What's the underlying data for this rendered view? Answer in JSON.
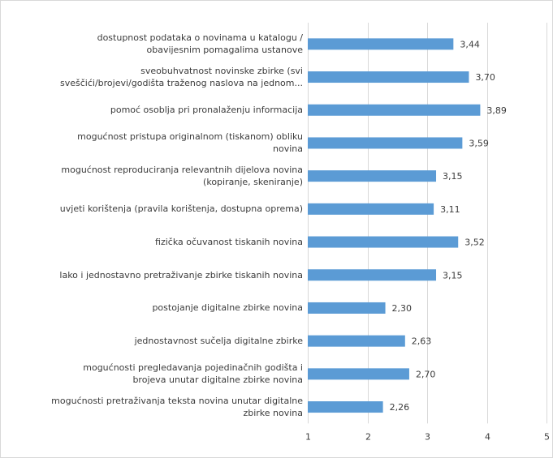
{
  "chart_data": {
    "type": "bar",
    "orientation": "horizontal",
    "categories": [
      "dostupnost podataka o novinama u katalogu /\nobavijesnim pomagalima ustanove",
      "sveobuhvatnost novinske zbirke (svi\nsveščići/brojevi/godišta traženog naslova na jednom...",
      "pomoć osoblja pri pronalaženju informacija",
      "mogućnost pristupa originalnom (tiskanom) obliku\nnovina",
      "mogućnost reproduciranja relevantnih dijelova novina\n(kopiranje, skeniranje)",
      "uvjeti korištenja (pravila korištenja, dostupna oprema)",
      "fizička očuvanost tiskanih novina",
      "lako i jednostavno pretraživanje zbirke tiskanih novina",
      "postojanje digitalne zbirke novina",
      "jednostavnost sučelja digitalne zbirke",
      "mogućnosti pregledavanja pojedinačnih godišta i\nbrojeva unutar digitalne zbirke novina",
      "mogućnosti pretraživanja teksta novina unutar digitalne\nzbirke novina"
    ],
    "values": [
      3.44,
      3.7,
      3.89,
      3.59,
      3.15,
      3.11,
      3.52,
      3.15,
      2.3,
      2.63,
      2.7,
      2.26
    ],
    "value_labels": [
      "3,44",
      "3,70",
      "3,89",
      "3,59",
      "3,15",
      "3,11",
      "3,52",
      "3,15",
      "2,30",
      "2,63",
      "2,70",
      "2,26"
    ],
    "xlim": [
      1,
      5
    ],
    "x_ticks": [
      "1",
      "2",
      "3",
      "4",
      "5"
    ],
    "grid": "vertical",
    "bar_color": "#5b9bd5",
    "title": "",
    "xlabel": "",
    "ylabel": ""
  }
}
